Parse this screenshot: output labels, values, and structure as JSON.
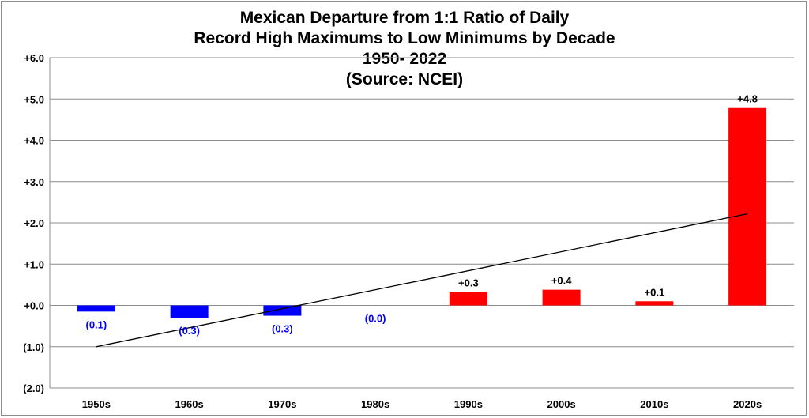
{
  "chart_data": {
    "type": "bar",
    "title_lines": [
      "Mexican Departure from 1:1 Ratio of Daily",
      "Record High Maximums to Low Minimums by Decade",
      "1950- 2022",
      "(Source: NCEI)"
    ],
    "categories": [
      "1950s",
      "1960s",
      "1970s",
      "1980s",
      "1990s",
      "2000s",
      "2010s",
      "2020s"
    ],
    "values": [
      -0.15,
      -0.3,
      -0.25,
      0.0,
      0.33,
      0.38,
      0.1,
      4.78
    ],
    "data_labels": [
      "(0.1)",
      "(0.3)",
      "(0.3)",
      "(0.0)",
      "+0.3",
      "+0.4",
      "+0.1",
      "+4.8"
    ],
    "y_ticks": [
      6,
      5,
      4,
      3,
      2,
      1,
      0,
      -1,
      -2
    ],
    "y_tick_labels": [
      "+6.0",
      "+5.0",
      "+4.0",
      "+3.0",
      "+2.0",
      "+1.0",
      "+0.0",
      "(1.0)",
      "(2.0)"
    ],
    "ylim": [
      -2,
      6
    ],
    "trendline": {
      "start": -1.0,
      "end": 2.22
    },
    "grid": true,
    "colors": {
      "positive": "#ff0000",
      "negative": "#0000ff",
      "negative_label": "#0000ff",
      "positive_label": "#000000",
      "grid": "#8c8c8c",
      "trend": "#000000"
    },
    "xlabel": "",
    "ylabel": ""
  }
}
